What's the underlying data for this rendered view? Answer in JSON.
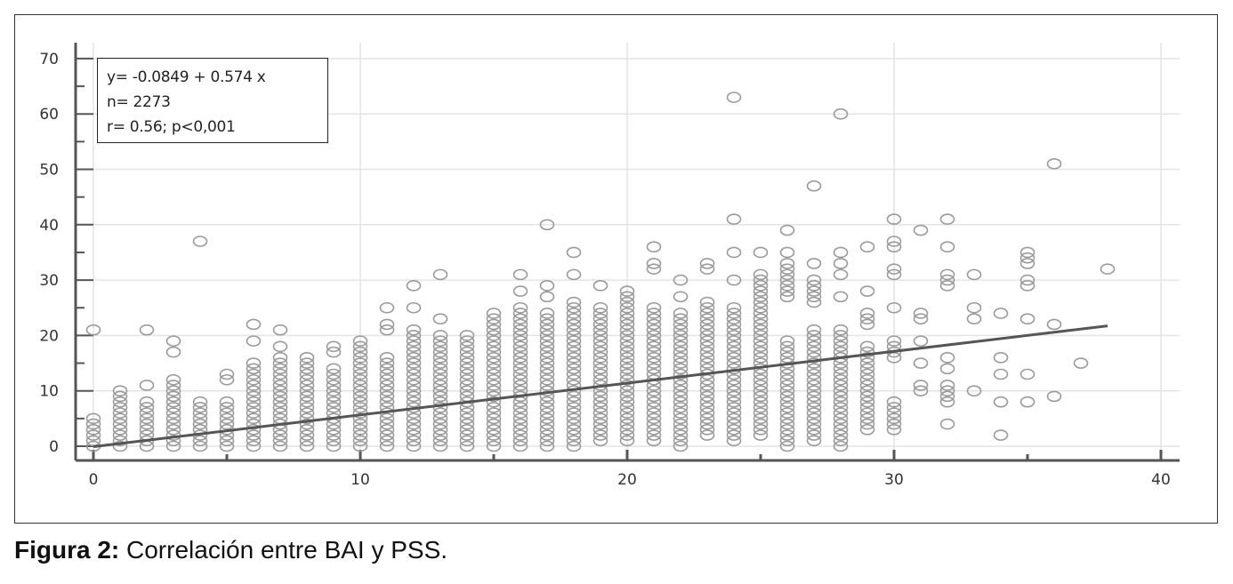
{
  "chart_data": {
    "type": "scatter",
    "title": "",
    "xlabel": "",
    "ylabel": "",
    "xlim": [
      0,
      40
    ],
    "ylim": [
      0,
      70
    ],
    "x_ticks": [
      "0",
      "10",
      "20",
      "30",
      "40"
    ],
    "y_ticks": [
      "0",
      "10",
      "20",
      "30",
      "40",
      "50",
      "60",
      "70"
    ],
    "grid": true,
    "marker": "hollow-circle",
    "marker_color": "#9a9a9a",
    "line_color": "#555555",
    "regression": {
      "intercept": -0.0849,
      "slope": 0.574,
      "x_range": [
        0,
        38
      ]
    },
    "annotation": [
      "y= -0.0849 + 0.574 x",
      "n= 2273",
      "r= 0.56; p<0,001"
    ],
    "columns": [
      {
        "x": 0,
        "y_ranges": [
          [
            0,
            5
          ]
        ],
        "y": [
          21
        ]
      },
      {
        "x": 1,
        "y_ranges": [
          [
            0,
            10
          ]
        ],
        "y": []
      },
      {
        "x": 2,
        "y_ranges": [
          [
            0,
            8
          ]
        ],
        "y": [
          11,
          21
        ]
      },
      {
        "x": 3,
        "y_ranges": [
          [
            0,
            12
          ]
        ],
        "y": [
          17,
          19
        ]
      },
      {
        "x": 4,
        "y_ranges": [
          [
            0,
            8
          ]
        ],
        "y": [
          37
        ]
      },
      {
        "x": 5,
        "y_ranges": [
          [
            0,
            8
          ]
        ],
        "y": [
          12,
          13
        ]
      },
      {
        "x": 6,
        "y_ranges": [
          [
            0,
            15
          ]
        ],
        "y": [
          19,
          22
        ]
      },
      {
        "x": 7,
        "y_ranges": [
          [
            0,
            16
          ]
        ],
        "y": [
          18,
          21
        ]
      },
      {
        "x": 8,
        "y_ranges": [
          [
            0,
            16
          ]
        ],
        "y": []
      },
      {
        "x": 9,
        "y_ranges": [
          [
            0,
            14
          ]
        ],
        "y": [
          17,
          18
        ]
      },
      {
        "x": 10,
        "y_ranges": [
          [
            0,
            19
          ]
        ],
        "y": []
      },
      {
        "x": 11,
        "y_ranges": [
          [
            0,
            16
          ]
        ],
        "y": [
          21,
          22,
          25
        ]
      },
      {
        "x": 12,
        "y_ranges": [
          [
            0,
            21
          ]
        ],
        "y": [
          25,
          29
        ]
      },
      {
        "x": 13,
        "y_ranges": [
          [
            0,
            20
          ]
        ],
        "y": [
          23,
          31
        ]
      },
      {
        "x": 14,
        "y_ranges": [
          [
            0,
            20
          ]
        ],
        "y": []
      },
      {
        "x": 15,
        "y_ranges": [
          [
            0,
            24
          ]
        ],
        "y": []
      },
      {
        "x": 16,
        "y_ranges": [
          [
            0,
            25
          ]
        ],
        "y": [
          28,
          31
        ]
      },
      {
        "x": 17,
        "y_ranges": [
          [
            0,
            24
          ]
        ],
        "y": [
          27,
          29,
          40
        ]
      },
      {
        "x": 18,
        "y_ranges": [
          [
            0,
            26
          ]
        ],
        "y": [
          31,
          35
        ]
      },
      {
        "x": 19,
        "y_ranges": [
          [
            1,
            25
          ]
        ],
        "y": [
          29
        ]
      },
      {
        "x": 20,
        "y_ranges": [
          [
            1,
            28
          ]
        ],
        "y": []
      },
      {
        "x": 21,
        "y_ranges": [
          [
            1,
            25
          ]
        ],
        "y": [
          32,
          33,
          36
        ]
      },
      {
        "x": 22,
        "y_ranges": [
          [
            0,
            24
          ]
        ],
        "y": [
          27,
          30
        ]
      },
      {
        "x": 23,
        "y_ranges": [
          [
            2,
            26
          ]
        ],
        "y": [
          32,
          33
        ]
      },
      {
        "x": 24,
        "y_ranges": [
          [
            1,
            25
          ]
        ],
        "y": [
          30,
          35,
          41,
          63
        ]
      },
      {
        "x": 25,
        "y_ranges": [
          [
            2,
            31
          ]
        ],
        "y": [
          35
        ]
      },
      {
        "x": 26,
        "y_ranges": [
          [
            0,
            19
          ],
          [
            27,
            33
          ]
        ],
        "y": [
          35,
          39
        ]
      },
      {
        "x": 27,
        "y_ranges": [
          [
            1,
            21
          ],
          [
            26,
            30
          ]
        ],
        "y": [
          33,
          47
        ]
      },
      {
        "x": 28,
        "y_ranges": [
          [
            0,
            21
          ]
        ],
        "y": [
          27,
          31,
          33,
          35,
          60
        ]
      },
      {
        "x": 29,
        "y_ranges": [
          [
            3,
            18
          ],
          [
            22,
            24
          ]
        ],
        "y": [
          28,
          36
        ]
      },
      {
        "x": 30,
        "y_ranges": [
          [
            3,
            8
          ],
          [
            16,
            19
          ]
        ],
        "y": [
          25,
          31,
          32,
          36,
          37,
          41
        ]
      },
      {
        "x": 31,
        "y_ranges": [],
        "y": [
          10,
          11,
          15,
          19,
          23,
          24,
          39
        ]
      },
      {
        "x": 32,
        "y_ranges": [
          [
            8,
            11
          ],
          [
            29,
            31
          ]
        ],
        "y": [
          4,
          14,
          16,
          36,
          41
        ]
      },
      {
        "x": 33,
        "y_ranges": [],
        "y": [
          10,
          23,
          25,
          31
        ]
      },
      {
        "x": 34,
        "y_ranges": [],
        "y": [
          2,
          8,
          13,
          16,
          24
        ]
      },
      {
        "x": 35,
        "y_ranges": [
          [
            33,
            35
          ]
        ],
        "y": [
          8,
          13,
          23,
          29,
          30
        ]
      },
      {
        "x": 36,
        "y_ranges": [],
        "y": [
          9,
          22,
          51
        ]
      },
      {
        "x": 37,
        "y_ranges": [],
        "y": [
          15
        ]
      },
      {
        "x": 38,
        "y_ranges": [],
        "y": [
          32
        ]
      }
    ]
  },
  "caption": {
    "label": "Figura 2:",
    "text": " Correlación entre BAI y PSS."
  }
}
